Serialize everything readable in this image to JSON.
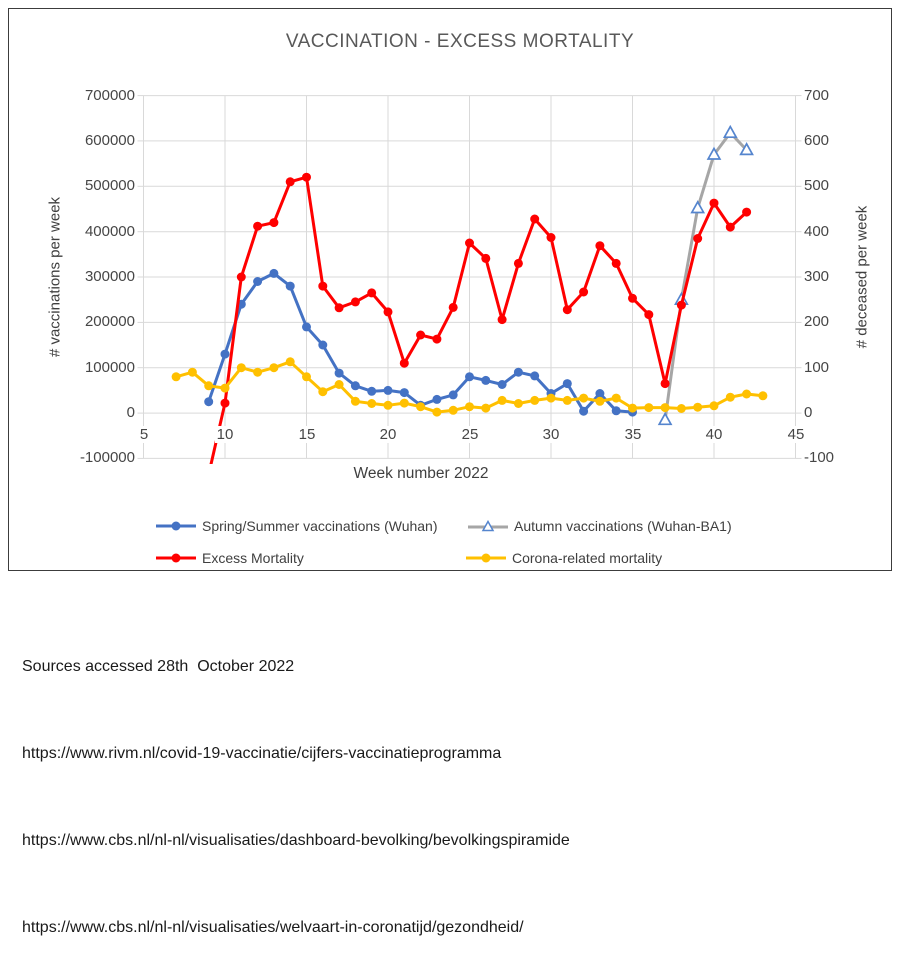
{
  "chart_data": {
    "type": "line",
    "title": "VACCINATION - EXCESS MORTALITY",
    "xlabel": "Week number 2022",
    "ylabel_left": "# vaccinations per week",
    "ylabel_right": "# deceased per week",
    "xlim": [
      5,
      45
    ],
    "ylim_left": [
      -100000,
      700000
    ],
    "ylim_right": [
      -100,
      700
    ],
    "grid": true,
    "legend_position": "bottom",
    "x_ticks": [
      5,
      10,
      15,
      20,
      25,
      30,
      35,
      40,
      45
    ],
    "left_ticks": [
      700000,
      600000,
      500000,
      400000,
      300000,
      200000,
      100000,
      0,
      -100000
    ],
    "right_ticks": [
      700,
      600,
      500,
      400,
      300,
      200,
      100,
      0,
      -100
    ],
    "gridline_color": "#d9d9d9",
    "series": [
      {
        "name": "Spring/Summer vaccinations (Wuhan)",
        "axis": "left",
        "color": "#4472C4",
        "marker": "circle",
        "x": [
          9,
          10,
          11,
          12,
          13,
          14,
          15,
          16,
          17,
          18,
          19,
          20,
          21,
          22,
          23,
          24,
          25,
          26,
          27,
          28,
          29,
          30,
          31,
          32,
          33,
          34,
          35
        ],
        "y": [
          25000,
          130000,
          240000,
          290000,
          308000,
          280000,
          190000,
          150000,
          88000,
          60000,
          48000,
          50000,
          45000,
          17000,
          30000,
          40000,
          80000,
          72000,
          63000,
          90000,
          82000,
          43000,
          65000,
          4000,
          43000,
          5000,
          2000
        ]
      },
      {
        "name": "Autumn vaccinations (Wuhan-BA1)",
        "axis": "right",
        "color": "#A6A6A6",
        "marker": "triangle-open",
        "marker_color": "#5585CE",
        "x": [
          37,
          38,
          39,
          40,
          41,
          42
        ],
        "y": [
          -15,
          250,
          452,
          570,
          618,
          580
        ]
      },
      {
        "name": "Excess Mortality",
        "axis": "left",
        "color": "#FF0000",
        "marker": "circle",
        "x": [
          9,
          10,
          11,
          12,
          13,
          14,
          15,
          16,
          17,
          18,
          19,
          20,
          21,
          22,
          23,
          24,
          25,
          26,
          27,
          28,
          29,
          30,
          31,
          32,
          33,
          34,
          35,
          36,
          37,
          38,
          39,
          40,
          41,
          42
        ],
        "y": [
          -135000,
          22000,
          300000,
          412000,
          420000,
          510000,
          520000,
          280000,
          232000,
          245000,
          265000,
          223000,
          110000,
          172000,
          163000,
          233000,
          375000,
          341000,
          206000,
          330000,
          428000,
          387000,
          228000,
          267000,
          369000,
          330000,
          253000,
          217000,
          65000,
          238000,
          385000,
          463000,
          410000,
          443000
        ]
      },
      {
        "name": "Corona-related mortality",
        "axis": "right",
        "color": "#FFC000",
        "marker": "circle",
        "x": [
          7,
          8,
          9,
          10,
          11,
          12,
          13,
          14,
          15,
          16,
          17,
          18,
          19,
          20,
          21,
          22,
          23,
          24,
          25,
          26,
          27,
          28,
          29,
          30,
          31,
          32,
          33,
          34,
          35,
          36,
          37,
          38,
          39,
          40,
          41,
          42,
          43
        ],
        "y": [
          80,
          90,
          60,
          55,
          100,
          90,
          100,
          113,
          80,
          47,
          63,
          26,
          21,
          17,
          22,
          14,
          2,
          6,
          14,
          11,
          28,
          21,
          28,
          33,
          28,
          33,
          26,
          33,
          11,
          12,
          12,
          10,
          13,
          16,
          35,
          42,
          38
        ]
      }
    ]
  },
  "sources": {
    "lines": [
      "Sources accessed 28th  October 2022",
      "https://www.rivm.nl/covid-19-vaccinatie/cijfers-vaccinatieprogramma",
      "https://www.cbs.nl/nl-nl/visualisaties/dashboard-bevolking/bevolkingspiramide",
      "https://www.cbs.nl/nl-nl/visualisaties/welvaart-in-coronatijd/gezondheid/"
    ]
  }
}
